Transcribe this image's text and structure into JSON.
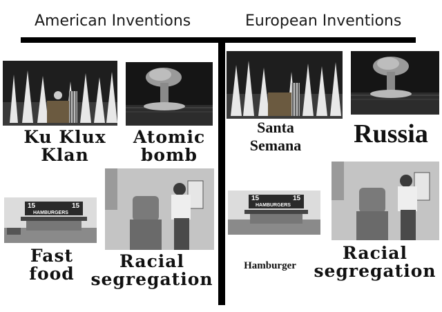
{
  "left_title": "American Inventions",
  "right_title": "European Inventions",
  "left": {
    "items": [
      {
        "caption_lines": [
          "Ku Klux",
          "Klan"
        ]
      },
      {
        "caption_lines": [
          "Atomic",
          "bomb"
        ]
      },
      {
        "caption_lines": [
          "Fast",
          "food"
        ]
      },
      {
        "caption_lines": [
          "Racial",
          "segregation"
        ]
      }
    ]
  },
  "right": {
    "items": [
      {
        "caption_lines": [
          "Santa",
          "Semana"
        ]
      },
      {
        "caption_lines": [
          "Russia"
        ]
      },
      {
        "caption_lines": [
          "Hamburger"
        ]
      },
      {
        "caption_lines": [
          "Racial",
          "segregation"
        ]
      }
    ]
  },
  "sign_text": {
    "price": "15",
    "brand": "HAMBURGERS"
  }
}
